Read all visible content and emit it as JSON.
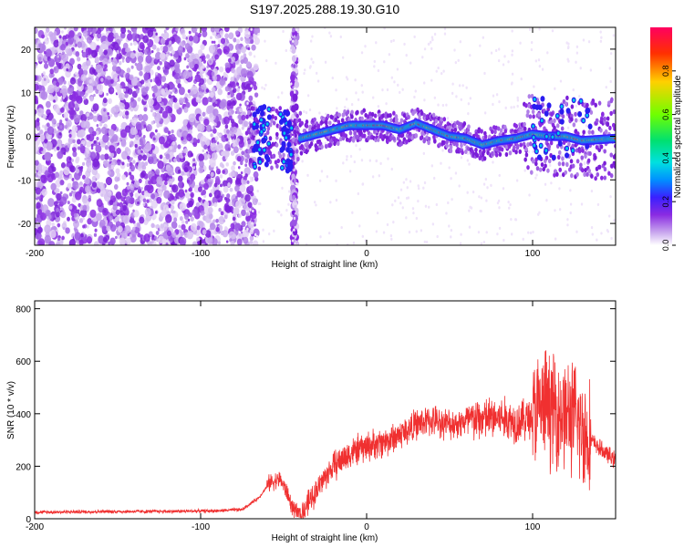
{
  "title": "S197.2025.288.19.30.G10",
  "chart_data": [
    {
      "type": "heatmap",
      "title": "S197.2025.288.19.30.G10",
      "xlabel": "Height of straight line (km)",
      "ylabel": "Frequency (Hz)",
      "xlim": [
        -200,
        150
      ],
      "ylim": [
        -25,
        25
      ],
      "xticks": [
        -200,
        -100,
        0,
        100
      ],
      "yticks": [
        -20,
        -10,
        0,
        10,
        20
      ],
      "colorbar": {
        "label": "Normalized spectral amplitude",
        "range": [
          0,
          1
        ],
        "ticks": [
          0.0,
          0.2,
          0.4,
          0.6,
          0.8
        ],
        "colormap": [
          "#ffffff",
          "#c8a6ee",
          "#8a2be2",
          "#3a20ff",
          "#0090ff",
          "#00e0e0",
          "#00e070",
          "#70ff00",
          "#ffd000",
          "#ff3000",
          "#ff0060"
        ]
      },
      "noise_region_x": [
        -200,
        -72
      ],
      "spike_x": [
        -45,
        -42
      ],
      "signal_region_x": [
        -72,
        150
      ],
      "ridge": [
        {
          "x": -40,
          "y": -0.5
        },
        {
          "x": -25,
          "y": 1.0
        },
        {
          "x": -10,
          "y": 2.5
        },
        {
          "x": 0,
          "y": 2.5
        },
        {
          "x": 10,
          "y": 2.5
        },
        {
          "x": 20,
          "y": 1.5
        },
        {
          "x": 30,
          "y": 3.0
        },
        {
          "x": 40,
          "y": 1.5
        },
        {
          "x": 50,
          "y": 0.0
        },
        {
          "x": 60,
          "y": -0.5
        },
        {
          "x": 70,
          "y": -2.0
        },
        {
          "x": 80,
          "y": -1.0
        },
        {
          "x": 90,
          "y": -0.5
        },
        {
          "x": 100,
          "y": 0.5
        },
        {
          "x": 110,
          "y": 0.0
        },
        {
          "x": 120,
          "y": 0.0
        },
        {
          "x": 130,
          "y": -1.0
        },
        {
          "x": 150,
          "y": -0.5
        }
      ]
    },
    {
      "type": "line",
      "xlabel": "Height of straight line (km)",
      "ylabel": "SNR (10 * v/v)",
      "xlim": [
        -200,
        150
      ],
      "ylim": [
        0,
        830
      ],
      "xticks": [
        -200,
        -100,
        0,
        100
      ],
      "yticks": [
        0,
        200,
        400,
        600,
        800
      ],
      "color": "#f03030",
      "series": [
        {
          "name": "SNR",
          "x": [
            -200,
            -160,
            -120,
            -90,
            -75,
            -65,
            -58,
            -52,
            -48,
            -44,
            -40,
            -35,
            -30,
            -25,
            -20,
            -10,
            0,
            10,
            20,
            30,
            40,
            50,
            60,
            70,
            80,
            90,
            100,
            105,
            110,
            115,
            120,
            125,
            130,
            135,
            140,
            145,
            150
          ],
          "values": [
            25,
            27,
            28,
            30,
            35,
            80,
            140,
            150,
            100,
            30,
            20,
            60,
            110,
            160,
            200,
            250,
            275,
            290,
            320,
            360,
            375,
            360,
            370,
            380,
            385,
            370,
            390,
            420,
            430,
            410,
            400,
            380,
            340,
            300,
            270,
            245,
            220
          ]
        }
      ]
    }
  ]
}
